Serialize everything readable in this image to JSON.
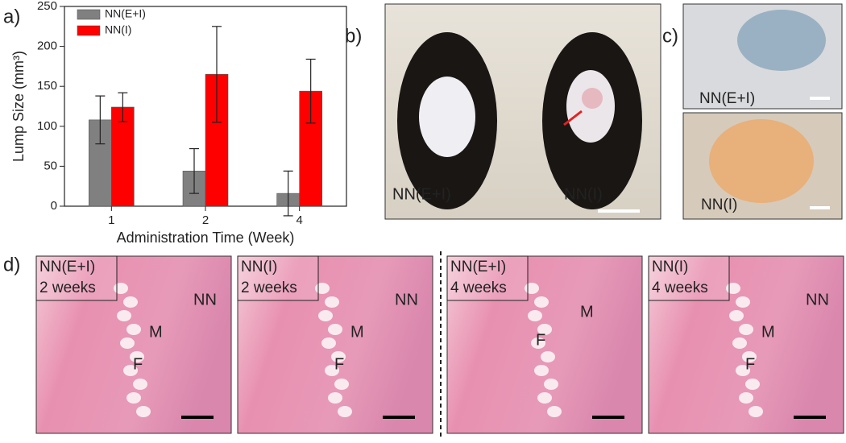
{
  "chart_data": {
    "type": "bar",
    "panel_label": "a)",
    "x_label": "Administration Time (Week)",
    "y_label": "Lump Size (mm³)",
    "categories": [
      "1",
      "2",
      "4"
    ],
    "series": [
      {
        "name": "NN(E+I)",
        "color": "#808080",
        "values": [
          108,
          44,
          16
        ],
        "errors": [
          30,
          28,
          28
        ]
      },
      {
        "name": "NN(I)",
        "color": "#ff0000",
        "values": [
          124,
          165,
          144
        ],
        "errors": [
          18,
          60,
          40
        ]
      }
    ],
    "ylim": [
      0,
      250
    ],
    "yticks": [
      0,
      50,
      100,
      150,
      200,
      250
    ],
    "legend": "upper-left"
  },
  "panels": {
    "b": {
      "label": "b)",
      "left": "NN(E+I)",
      "right": "NN(I)"
    },
    "c": {
      "label": "c)",
      "top": "NN(E+I)",
      "bottom": "NN(I)"
    },
    "d": {
      "label": "d)",
      "images": [
        {
          "group": "NN(E+I)",
          "time": "2 weeks",
          "marks": [
            "NN",
            "M",
            "F"
          ]
        },
        {
          "group": "NN(I)",
          "time": "2 weeks",
          "marks": [
            "NN",
            "M",
            "F"
          ]
        },
        {
          "group": "NN(E+I)",
          "time": "4 weeks",
          "marks": [
            "M",
            "F"
          ]
        },
        {
          "group": "NN(I)",
          "time": "4 weeks",
          "marks": [
            "NN",
            "M",
            "F"
          ]
        }
      ]
    }
  }
}
